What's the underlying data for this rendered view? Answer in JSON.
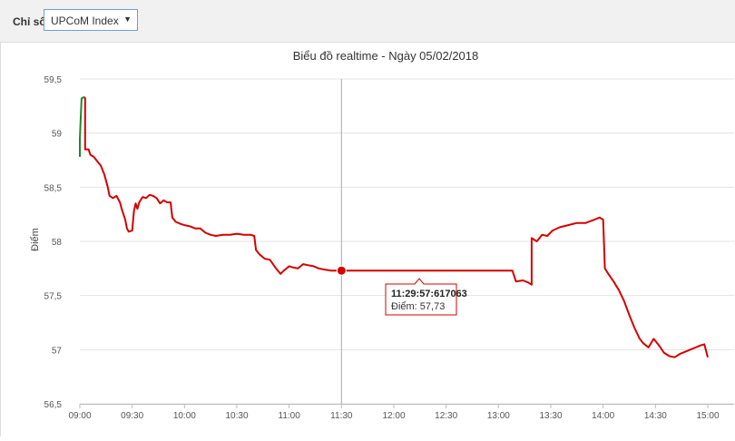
{
  "filter": {
    "label": "Chỉ số",
    "selected": "UPCoM Index"
  },
  "chart_data": {
    "type": "line",
    "title": "Biểu đồ realtime - Ngày 05/02/2018",
    "ylabel": "Điểm",
    "xlabel": "",
    "ylim": [
      56.5,
      59.5
    ],
    "yticks": [
      "59,5",
      "59",
      "58,5",
      "58",
      "57,5",
      "57",
      "56,5"
    ],
    "xticks": [
      "09:00",
      "09:30",
      "10:00",
      "10:30",
      "11:00",
      "11:30",
      "12:00",
      "12:30",
      "13:00",
      "13:30",
      "14:00",
      "14:30",
      "15:00"
    ],
    "grid": true,
    "colors": {
      "up": "#1a8a2a",
      "down": "#d40000",
      "crosshair": "#aaaaaa",
      "grid": "#e3e3e3"
    },
    "series": [
      {
        "segment": "up",
        "points": [
          [
            "09:00",
            58.78
          ],
          [
            "09:00",
            58.95
          ],
          [
            "09:01",
            59.32
          ],
          [
            "09:02",
            59.33
          ],
          [
            "09:03",
            59.33
          ]
        ]
      },
      {
        "segment": "down",
        "points": [
          [
            "09:03",
            59.33
          ],
          [
            "09:03",
            58.85
          ],
          [
            "09:05",
            58.85
          ],
          [
            "09:06",
            58.8
          ],
          [
            "09:08",
            58.78
          ],
          [
            "09:10",
            58.74
          ],
          [
            "09:12",
            58.7
          ],
          [
            "09:14",
            58.62
          ],
          [
            "09:16",
            58.5
          ],
          [
            "09:17",
            58.42
          ],
          [
            "09:19",
            58.4
          ],
          [
            "09:21",
            58.42
          ],
          [
            "09:23",
            58.36
          ],
          [
            "09:24",
            58.3
          ],
          [
            "09:26",
            58.2
          ],
          [
            "09:27",
            58.12
          ],
          [
            "09:28",
            58.09
          ],
          [
            "09:30",
            58.1
          ],
          [
            "09:31",
            58.28
          ],
          [
            "09:32",
            58.35
          ],
          [
            "09:33",
            58.3
          ],
          [
            "09:34",
            58.36
          ],
          [
            "09:36",
            58.41
          ],
          [
            "09:38",
            58.4
          ],
          [
            "09:40",
            58.43
          ],
          [
            "09:42",
            58.42
          ],
          [
            "09:44",
            58.4
          ],
          [
            "09:46",
            58.35
          ],
          [
            "09:48",
            58.38
          ],
          [
            "09:50",
            58.36
          ],
          [
            "09:52",
            58.36
          ],
          [
            "09:53",
            58.22
          ],
          [
            "09:55",
            58.18
          ],
          [
            "09:58",
            58.16
          ],
          [
            "10:00",
            58.15
          ],
          [
            "10:03",
            58.14
          ],
          [
            "10:06",
            58.12
          ],
          [
            "10:09",
            58.12
          ],
          [
            "10:12",
            58.08
          ],
          [
            "10:15",
            58.06
          ],
          [
            "10:18",
            58.05
          ],
          [
            "10:22",
            58.06
          ],
          [
            "10:26",
            58.06
          ],
          [
            "10:30",
            58.07
          ],
          [
            "10:34",
            58.06
          ],
          [
            "10:38",
            58.06
          ],
          [
            "10:40",
            58.05
          ],
          [
            "10:41",
            57.92
          ],
          [
            "10:43",
            57.88
          ],
          [
            "10:46",
            57.84
          ],
          [
            "10:49",
            57.83
          ],
          [
            "10:52",
            57.76
          ],
          [
            "10:55",
            57.7
          ],
          [
            "10:57",
            57.73
          ],
          [
            "11:00",
            57.77
          ],
          [
            "11:02",
            57.76
          ],
          [
            "11:05",
            57.75
          ],
          [
            "11:08",
            57.79
          ],
          [
            "11:11",
            57.78
          ],
          [
            "11:14",
            57.77
          ],
          [
            "11:17",
            57.75
          ],
          [
            "11:20",
            57.74
          ],
          [
            "11:24",
            57.73
          ],
          [
            "11:27",
            57.73
          ],
          [
            "11:30",
            57.73
          ],
          [
            "11:45",
            57.73
          ],
          [
            "12:00",
            57.73
          ],
          [
            "12:15",
            57.73
          ],
          [
            "12:30",
            57.73
          ],
          [
            "12:45",
            57.73
          ],
          [
            "13:00",
            57.73
          ],
          [
            "13:08",
            57.73
          ],
          [
            "13:10",
            57.63
          ],
          [
            "13:14",
            57.64
          ],
          [
            "13:17",
            57.62
          ],
          [
            "13:19",
            57.6
          ],
          [
            "13:19",
            58.03
          ],
          [
            "13:22",
            58.0
          ],
          [
            "13:25",
            58.06
          ],
          [
            "13:28",
            58.05
          ],
          [
            "13:31",
            58.1
          ],
          [
            "13:35",
            58.13
          ],
          [
            "13:40",
            58.15
          ],
          [
            "13:45",
            58.17
          ],
          [
            "13:50",
            58.17
          ],
          [
            "13:55",
            58.2
          ],
          [
            "13:58",
            58.22
          ],
          [
            "14:00",
            58.2
          ],
          [
            "14:01",
            57.75
          ],
          [
            "14:03",
            57.7
          ],
          [
            "14:06",
            57.63
          ],
          [
            "14:09",
            57.55
          ],
          [
            "14:12",
            57.45
          ],
          [
            "14:15",
            57.32
          ],
          [
            "14:18",
            57.2
          ],
          [
            "14:21",
            57.1
          ],
          [
            "14:23",
            57.06
          ],
          [
            "14:26",
            57.02
          ],
          [
            "14:29",
            57.1
          ],
          [
            "14:32",
            57.04
          ],
          [
            "14:35",
            56.97
          ],
          [
            "14:38",
            56.94
          ],
          [
            "14:41",
            56.93
          ],
          [
            "14:44",
            56.96
          ],
          [
            "14:47",
            56.98
          ],
          [
            "14:50",
            57.0
          ],
          [
            "14:53",
            57.02
          ],
          [
            "14:56",
            57.04
          ],
          [
            "14:58",
            57.05
          ],
          [
            "15:00",
            56.93
          ]
        ]
      }
    ],
    "tooltip": {
      "time_label": "11:29:57:617063",
      "value_label": "Điểm: 57,73",
      "time": "11:30",
      "value": 57.73
    }
  }
}
